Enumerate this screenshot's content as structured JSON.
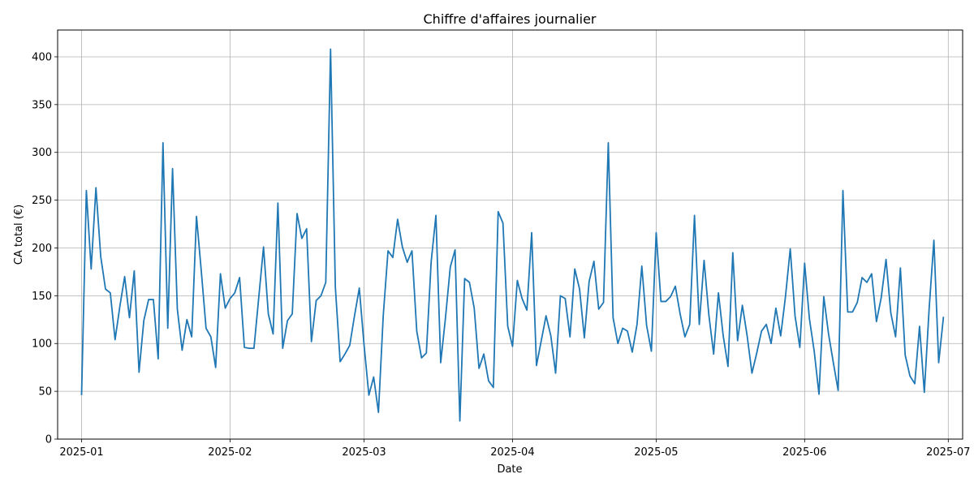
{
  "chart_data": {
    "type": "line",
    "title": "Chiffre d'affaires journalier",
    "xlabel": "Date",
    "ylabel": "CA total (€)",
    "grid": true,
    "line_color": "#1f77b4",
    "ylim": [
      0,
      428
    ],
    "xlim": [
      "2024-12-27",
      "2025-07-04"
    ],
    "y_ticks": [
      0,
      50,
      100,
      150,
      200,
      250,
      300,
      350,
      400
    ],
    "x_ticks": [
      {
        "date": "2025-01-01",
        "label": "2025-01"
      },
      {
        "date": "2025-02-01",
        "label": "2025-02"
      },
      {
        "date": "2025-03-01",
        "label": "2025-03"
      },
      {
        "date": "2025-04-01",
        "label": "2025-04"
      },
      {
        "date": "2025-05-01",
        "label": "2025-05"
      },
      {
        "date": "2025-06-01",
        "label": "2025-06"
      },
      {
        "date": "2025-07-01",
        "label": "2025-07"
      }
    ],
    "series": [
      {
        "x": [
          "2025-01-01",
          "2025-01-02",
          "2025-01-03",
          "2025-01-04",
          "2025-01-05",
          "2025-01-06",
          "2025-01-07",
          "2025-01-08",
          "2025-01-09",
          "2025-01-10",
          "2025-01-11",
          "2025-01-12",
          "2025-01-13",
          "2025-01-14",
          "2025-01-15",
          "2025-01-16",
          "2025-01-17",
          "2025-01-18",
          "2025-01-19",
          "2025-01-20",
          "2025-01-21",
          "2025-01-22",
          "2025-01-23",
          "2025-01-24",
          "2025-01-25",
          "2025-01-26",
          "2025-01-27",
          "2025-01-28",
          "2025-01-29",
          "2025-01-30",
          "2025-01-31",
          "2025-02-01",
          "2025-02-02",
          "2025-02-03",
          "2025-02-04",
          "2025-02-05",
          "2025-02-06",
          "2025-02-07",
          "2025-02-08",
          "2025-02-09",
          "2025-02-10",
          "2025-02-11",
          "2025-02-12",
          "2025-02-13",
          "2025-02-14",
          "2025-02-15",
          "2025-02-16",
          "2025-02-17",
          "2025-02-18",
          "2025-02-19",
          "2025-02-20",
          "2025-02-21",
          "2025-02-22",
          "2025-02-23",
          "2025-02-24",
          "2025-02-25",
          "2025-02-26",
          "2025-02-27",
          "2025-02-28",
          "2025-03-01",
          "2025-03-02",
          "2025-03-03",
          "2025-03-04",
          "2025-03-05",
          "2025-03-06",
          "2025-03-07",
          "2025-03-08",
          "2025-03-09",
          "2025-03-10",
          "2025-03-11",
          "2025-03-12",
          "2025-03-13",
          "2025-03-14",
          "2025-03-15",
          "2025-03-16",
          "2025-03-17",
          "2025-03-18",
          "2025-03-19",
          "2025-03-20",
          "2025-03-21",
          "2025-03-22",
          "2025-03-23",
          "2025-03-24",
          "2025-03-25",
          "2025-03-26",
          "2025-03-27",
          "2025-03-28",
          "2025-03-29",
          "2025-03-30",
          "2025-03-31",
          "2025-04-01",
          "2025-04-02",
          "2025-04-03",
          "2025-04-04",
          "2025-04-05",
          "2025-04-06",
          "2025-04-07",
          "2025-04-08",
          "2025-04-09",
          "2025-04-10",
          "2025-04-11",
          "2025-04-12",
          "2025-04-13",
          "2025-04-14",
          "2025-04-15",
          "2025-04-16",
          "2025-04-17",
          "2025-04-18",
          "2025-04-19",
          "2025-04-20",
          "2025-04-21",
          "2025-04-22",
          "2025-04-23",
          "2025-04-24",
          "2025-04-25",
          "2025-04-26",
          "2025-04-27",
          "2025-04-28",
          "2025-04-29",
          "2025-04-30",
          "2025-05-01",
          "2025-05-02",
          "2025-05-03",
          "2025-05-04",
          "2025-05-05",
          "2025-05-06",
          "2025-05-07",
          "2025-05-08",
          "2025-05-09",
          "2025-05-10",
          "2025-05-11",
          "2025-05-12",
          "2025-05-13",
          "2025-05-14",
          "2025-05-15",
          "2025-05-16",
          "2025-05-17",
          "2025-05-18",
          "2025-05-19",
          "2025-05-20",
          "2025-05-21",
          "2025-05-22",
          "2025-05-23",
          "2025-05-24",
          "2025-05-25",
          "2025-05-26",
          "2025-05-27",
          "2025-05-28",
          "2025-05-29",
          "2025-05-30",
          "2025-05-31",
          "2025-06-01",
          "2025-06-02",
          "2025-06-03",
          "2025-06-04",
          "2025-06-05",
          "2025-06-06",
          "2025-06-07",
          "2025-06-08",
          "2025-06-09",
          "2025-06-10",
          "2025-06-11",
          "2025-06-12",
          "2025-06-13",
          "2025-06-14",
          "2025-06-15",
          "2025-06-16",
          "2025-06-17",
          "2025-06-18",
          "2025-06-19",
          "2025-06-20",
          "2025-06-21",
          "2025-06-22",
          "2025-06-23",
          "2025-06-24",
          "2025-06-25",
          "2025-06-26",
          "2025-06-27",
          "2025-06-28",
          "2025-06-29",
          "2025-06-30"
        ],
        "y": [
          46,
          260,
          178,
          263,
          191,
          157,
          153,
          104,
          139,
          170,
          127,
          176,
          70,
          124,
          146,
          146,
          84,
          310,
          116,
          283,
          136,
          93,
          125,
          107,
          233,
          176,
          116,
          107,
          75,
          173,
          137,
          147,
          153,
          169,
          96,
          95,
          95,
          148,
          201,
          131,
          110,
          247,
          95,
          124,
          131,
          236,
          210,
          220,
          102,
          145,
          150,
          164,
          408,
          159,
          81,
          89,
          98,
          129,
          158,
          98,
          46,
          65,
          28,
          129,
          197,
          190,
          230,
          201,
          185,
          197,
          113,
          85,
          90,
          185,
          234,
          80,
          127,
          180,
          198,
          19,
          168,
          164,
          137,
          74,
          89,
          61,
          54,
          238,
          226,
          118,
          97,
          166,
          147,
          135,
          216,
          77,
          103,
          129,
          108,
          69,
          150,
          147,
          107,
          178,
          157,
          106,
          165,
          186,
          136,
          143,
          310,
          127,
          100,
          116,
          113,
          91,
          120,
          181,
          119,
          92,
          216,
          144,
          144,
          149,
          160,
          131,
          107,
          120,
          234,
          120,
          187,
          130,
          89,
          153,
          108,
          76,
          195,
          103,
          140,
          108,
          69,
          90,
          113,
          120,
          100,
          137,
          108,
          149,
          199,
          129,
          96,
          184,
          126,
          92,
          47,
          149,
          110,
          80,
          51,
          260,
          133,
          133,
          143,
          169,
          164,
          173,
          123,
          148,
          188,
          132,
          107,
          179,
          88,
          66,
          58,
          118,
          49,
          136,
          208,
          80,
          128
        ]
      }
    ]
  }
}
